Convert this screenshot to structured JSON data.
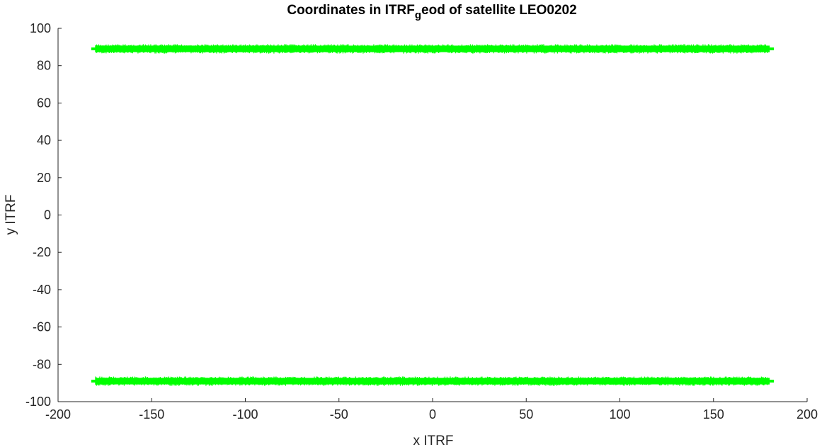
{
  "chart_data": {
    "type": "line",
    "title": {
      "main": "Coordinates in ITRF",
      "subscript": "g",
      "rest": "eod of satellite LEO0202"
    },
    "xlabel": "x ITRF",
    "ylabel": "y ITRF",
    "xlim": [
      -200,
      200
    ],
    "ylim": [
      -100,
      100
    ],
    "xticks": [
      -200,
      -150,
      -100,
      -50,
      0,
      50,
      100,
      150,
      200
    ],
    "yticks": [
      100,
      80,
      60,
      40,
      20,
      0,
      -20,
      -40,
      -60,
      -80,
      -100
    ],
    "xtick_labels": [
      "-200",
      "-150",
      "-100",
      "-50",
      "0",
      "50",
      "100",
      "150",
      "200"
    ],
    "ytick_labels": [
      "100",
      "80",
      "60",
      "40",
      "20",
      "0",
      "-20",
      "-40",
      "-60",
      "-80",
      "-100"
    ],
    "grid": false,
    "series": [
      {
        "x": [
          -180,
          180
        ],
        "y": [
          89,
          89
        ],
        "band": [
          86.5,
          91.5
        ],
        "color": "#00ff00"
      },
      {
        "x": [
          -180,
          180
        ],
        "y": [
          -89,
          -89
        ],
        "band": [
          -91.5,
          -86.5
        ],
        "color": "#00ff00"
      }
    ],
    "axis_color": "#262626"
  }
}
